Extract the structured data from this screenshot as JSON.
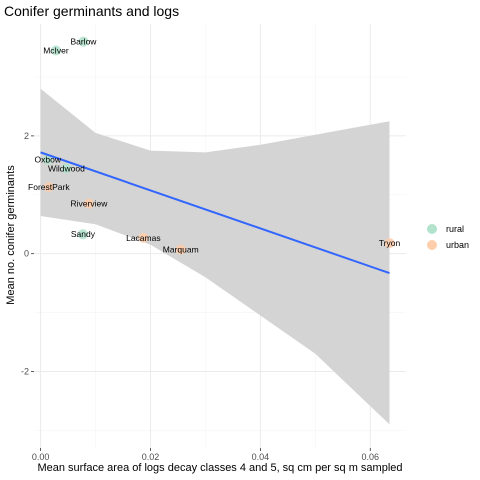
{
  "chart_data": {
    "type": "scatter",
    "title": "Conifer germinants and logs",
    "xlabel": "Mean surface area of logs decay classes 4 and 5, sq cm per sq m sampled",
    "ylabel": "Mean no. conifer germinants",
    "xlim": [
      -0.0012,
      0.0665
    ],
    "ylim": [
      -3.3,
      3.9
    ],
    "x_ticks": [
      0.0,
      0.02,
      0.04,
      0.06
    ],
    "x_tick_labels": [
      "0.00",
      "0.02",
      "0.04",
      "0.06"
    ],
    "y_ticks": [
      -2,
      0,
      2
    ],
    "y_tick_labels": [
      "-2",
      "0",
      "2"
    ],
    "grid": true,
    "legend": {
      "position": "right",
      "entries": [
        {
          "name": "rural",
          "color": "#b3e2cd"
        },
        {
          "name": "urban",
          "color": "#fdcdac"
        }
      ]
    },
    "points": [
      {
        "label": "Barlow",
        "x": 0.0078,
        "y": 3.6,
        "group": "rural"
      },
      {
        "label": "McIver",
        "x": 0.0028,
        "y": 3.45,
        "group": "rural"
      },
      {
        "label": "Oxbow",
        "x": 0.0013,
        "y": 1.6,
        "group": "rural"
      },
      {
        "label": "Wildwood",
        "x": 0.0047,
        "y": 1.45,
        "group": "rural"
      },
      {
        "label": "ForestPark",
        "x": 0.0015,
        "y": 1.13,
        "group": "urban"
      },
      {
        "label": "Riverview",
        "x": 0.0088,
        "y": 0.85,
        "group": "urban"
      },
      {
        "label": "Sandy",
        "x": 0.0077,
        "y": 0.33,
        "group": "rural"
      },
      {
        "label": "Lacamas",
        "x": 0.0187,
        "y": 0.27,
        "group": "urban"
      },
      {
        "label": "Marquam",
        "x": 0.0255,
        "y": 0.07,
        "group": "urban"
      },
      {
        "label": "Tryon",
        "x": 0.0635,
        "y": 0.18,
        "group": "urban"
      }
    ],
    "trend_line": {
      "x": [
        0.0,
        0.0635
      ],
      "y": [
        1.72,
        -0.33
      ],
      "color": "#3366ff"
    },
    "confidence_band": {
      "x": [
        0.0,
        0.01,
        0.02,
        0.03,
        0.04,
        0.05,
        0.0635
      ],
      "upper": [
        2.8,
        2.05,
        1.75,
        1.72,
        1.85,
        2.02,
        2.25
      ],
      "lower": [
        0.64,
        0.5,
        0.15,
        -0.4,
        -1.05,
        -1.7,
        -2.9
      ]
    },
    "colors": {
      "panel": "#ffffff",
      "grid_major": "#ebebeb",
      "grid_minor": "#f5f5f5",
      "band": "#d4d4d4",
      "line": "#3366ff"
    }
  }
}
